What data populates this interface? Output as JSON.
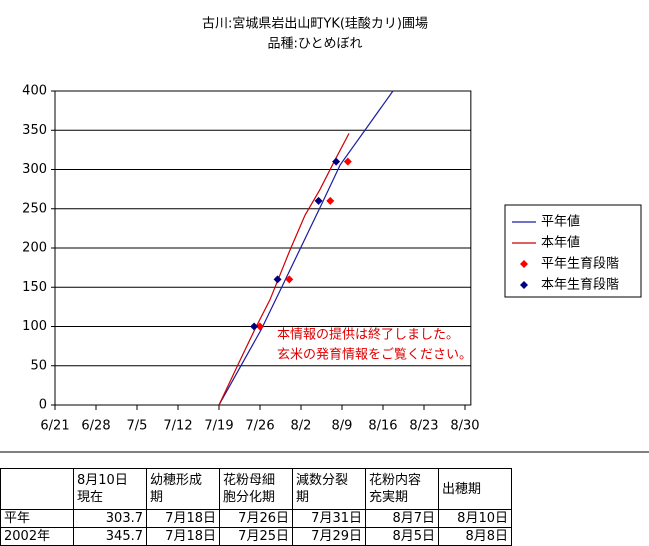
{
  "chart_data": {
    "type": "line",
    "title": "古川:宮城県岩出山町YK(珪酸カリ)圃場",
    "subtitle": "品種:ひとめぼれ",
    "xlim": [
      0,
      71
    ],
    "xticks": [
      {
        "value": 0,
        "label": "6/21"
      },
      {
        "value": 7,
        "label": "6/28"
      },
      {
        "value": 14,
        "label": "7/5"
      },
      {
        "value": 21,
        "label": "7/12"
      },
      {
        "value": 28,
        "label": "7/19"
      },
      {
        "value": 35,
        "label": "7/26"
      },
      {
        "value": 42,
        "label": "8/2"
      },
      {
        "value": 49,
        "label": "8/9"
      },
      {
        "value": 56,
        "label": "8/16"
      },
      {
        "value": 63,
        "label": "8/23"
      },
      {
        "value": 70,
        "label": "8/30"
      }
    ],
    "ylim": [
      0,
      400
    ],
    "yticks": [
      0,
      50,
      100,
      150,
      200,
      250,
      300,
      350,
      400
    ],
    "grid": true,
    "legend": "right",
    "series": [
      {
        "name": "平年値",
        "kind": "line",
        "color": "#1a1aa0",
        "x": [
          28,
          35.2,
          38.9,
          45.6,
          48.7,
          57.7
        ],
        "values": [
          0,
          96,
          153,
          257,
          306,
          400
        ]
      },
      {
        "name": "本年値",
        "kind": "line",
        "color": "#cc0000",
        "x": [
          28,
          31.6,
          34.1,
          36.7,
          40.1,
          42.7,
          45.2,
          47.8,
          50.2
        ],
        "values": [
          0,
          57,
          96,
          134,
          197,
          242,
          274,
          312,
          346
        ]
      },
      {
        "name": "平年生育段階",
        "kind": "scatter",
        "color": "#ff0000",
        "x": [
          35,
          40,
          47,
          50
        ],
        "values": [
          100,
          160,
          260,
          310
        ]
      },
      {
        "name": "本年生育段階",
        "kind": "scatter",
        "color": "#000080",
        "x": [
          34,
          38,
          45,
          48
        ],
        "values": [
          100,
          160,
          260,
          310
        ]
      }
    ],
    "annotations": [
      "本情報の提供は終了しました。",
      "玄米の発育情報をご覧ください。"
    ]
  },
  "table": {
    "header": [
      "",
      "8月10日\n現在",
      "幼穂形成\n期",
      "花粉母細\n胞分化期",
      "減数分裂\n期",
      "花粉内容\n充実期",
      "出穂期"
    ],
    "rows": [
      [
        "平年",
        "303.7",
        "7月18日",
        "7月26日",
        "7月31日",
        "8月7日",
        "8月10日"
      ],
      [
        "2002年",
        "345.7",
        "7月18日",
        "7月25日",
        "7月29日",
        "8月5日",
        "8月8日"
      ]
    ]
  }
}
